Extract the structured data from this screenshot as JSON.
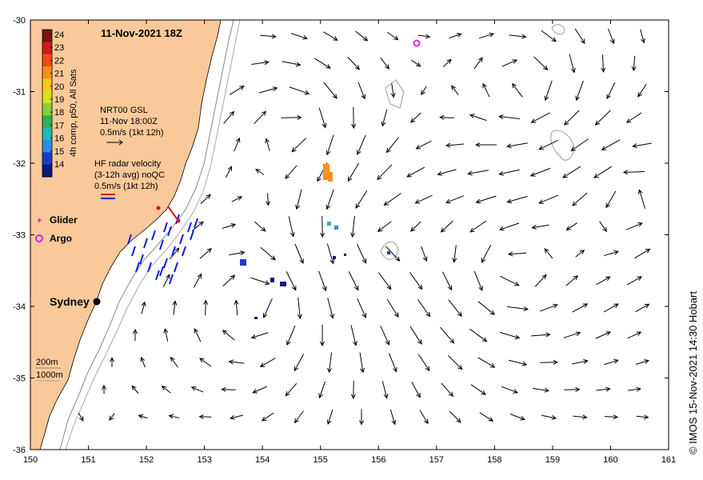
{
  "title": "11-Nov-2021 18Z",
  "colorbar": {
    "label": "4h comp, p50, All Sats",
    "ticks": [
      "24",
      "23",
      "22",
      "21",
      "20",
      "19",
      "18",
      "17",
      "16",
      "15",
      "14"
    ],
    "colors": [
      "#7f1010",
      "#c81e1e",
      "#f04a14",
      "#f7901e",
      "#f7c81e",
      "#d8e020",
      "#88d030",
      "#30b050",
      "#20b8b8",
      "#2e8ce0",
      "#1a3cc8",
      "#0a1a78"
    ]
  },
  "current_legend": {
    "source": "NRT00 GSL",
    "time": "11-Nov 18:00Z",
    "scale": "0.5m/s (1kt 12h)"
  },
  "radar_legend": {
    "line1": "HF radar velocity",
    "line2": "(3-12h avg) noQC",
    "scale": "0.5m/s (1kt 12h)"
  },
  "symbols": {
    "glider": "Glider",
    "argo": "Argo"
  },
  "city": "Sydney",
  "isobaths": {
    "shallow": "200m",
    "deep": "1000m"
  },
  "axes": {
    "x_ticks": [
      "150",
      "151",
      "152",
      "153",
      "154",
      "155",
      "156",
      "157",
      "158",
      "159",
      "160",
      "161"
    ],
    "y_ticks": [
      "-30",
      "-31",
      "-32",
      "-33",
      "-34",
      "-35",
      "-36"
    ],
    "lon_range": [
      150,
      161
    ],
    "lat_range": [
      -36,
      -30
    ]
  },
  "credit": "© IMOS 15-Nov-2021 14:30 Hobart",
  "colors": {
    "land": "#f9c99a",
    "sea": "#ffffff",
    "argo": "#e020e0",
    "radar_red": "#e01010",
    "radar_blue": "#1020e0"
  }
}
